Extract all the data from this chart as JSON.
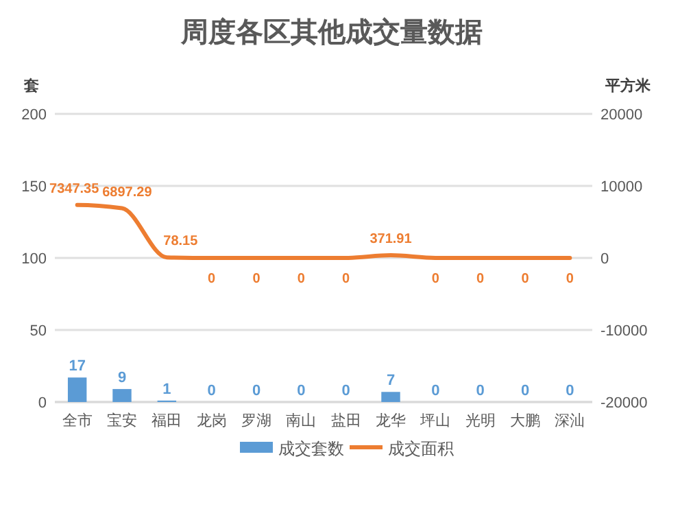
{
  "chart_data": {
    "type": "bar",
    "title": "周度各区其他成交量数据",
    "ylabel": "套",
    "y2label": "平方米",
    "categories": [
      "全市",
      "宝安",
      "福田",
      "龙岗",
      "罗湖",
      "南山",
      "盐田",
      "龙华",
      "坪山",
      "光明",
      "大鹏",
      "深汕"
    ],
    "series": [
      {
        "name": "成交套数",
        "type": "bar",
        "color": "#5b9bd5",
        "values": [
          17,
          9,
          1,
          0,
          0,
          0,
          0,
          7,
          0,
          0,
          0,
          0
        ]
      },
      {
        "name": "成交面积",
        "type": "line",
        "axis": "y2",
        "color": "#ed7d31",
        "values": [
          7347.35,
          6897.29,
          78.15,
          0,
          0,
          0,
          0,
          371.91,
          0,
          0,
          0,
          0
        ]
      }
    ],
    "ylim": [
      0,
      200
    ],
    "yticks": [
      0,
      50,
      100,
      150,
      200
    ],
    "y2lim": [
      -20000,
      20000
    ],
    "y2ticks": [
      -20000,
      -10000,
      0,
      10000,
      20000
    ],
    "grid": "y",
    "legend": "bottom",
    "data_labels": true,
    "marker": "none"
  }
}
